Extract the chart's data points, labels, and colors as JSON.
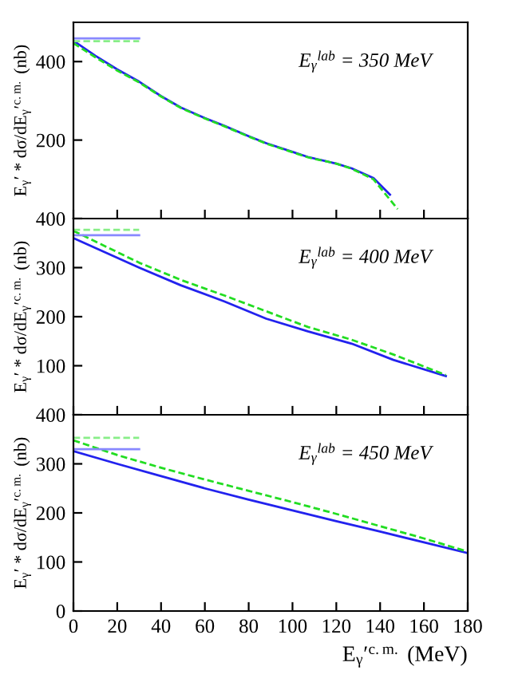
{
  "chart_data": [
    {
      "type": "line",
      "ylabel": "E$_{γ}$′ * dσ/dE$_{γ}$′$^{c.m.}$ (nb)",
      "annotations": [
        "E$_{γ}$$^{lab}$ = 350 MeV"
      ],
      "xlim": [
        0,
        180
      ],
      "xticks": [
        0,
        20,
        40,
        60,
        80,
        100,
        120,
        140,
        160,
        180
      ],
      "ylim": [
        0,
        500
      ],
      "yticks": [
        {
          "value": 0,
          "label": null
        },
        200,
        400
      ],
      "tick_labels": "y",
      "series": [
        {
          "color": "#2222ee",
          "line_style": "solid",
          "x": [
            0,
            10,
            20,
            30,
            40,
            49,
            60,
            69,
            80,
            88,
            100,
            107,
            120,
            127,
            137,
            144.5
          ],
          "values": [
            453,
            415,
            380,
            349,
            312,
            283,
            256,
            236,
            210,
            192,
            170,
            157,
            140,
            128,
            103,
            61
          ]
        },
        {
          "color": "#22dd22",
          "line_style": "dashed",
          "x": [
            0,
            10,
            20,
            30,
            40,
            49,
            60,
            69,
            80,
            88,
            100,
            107,
            120,
            127,
            137,
            148
          ],
          "values": [
            447,
            411,
            377,
            347,
            311,
            282,
            255,
            235,
            209,
            191,
            169,
            156,
            140,
            127,
            100,
            24
          ]
        },
        {
          "color": "#8888ff",
          "line_style": "solid",
          "x": [
            0,
            30
          ],
          "values": [
            459,
            459
          ]
        },
        {
          "color": "#88ee88",
          "line_style": "dashed",
          "x": [
            0,
            30
          ],
          "values": [
            452,
            452
          ]
        }
      ]
    },
    {
      "type": "line",
      "ylabel": "E$_{γ}$′ * dσ/dE$_{γ}$′$^{c.m.}$ (nb)",
      "annotations": [
        "E$_{γ}$$^{lab}$ = 400 MeV"
      ],
      "xlim": [
        0,
        180
      ],
      "xticks": [
        0,
        20,
        40,
        60,
        80,
        100,
        120,
        140,
        160,
        180
      ],
      "ylim": [
        0,
        400
      ],
      "yticks": [
        {
          "value": 0,
          "label": null
        },
        100,
        200,
        300,
        400
      ],
      "tick_labels": "y",
      "series": [
        {
          "color": "#2222ee",
          "line_style": "solid",
          "x": [
            0,
            30,
            49,
            69,
            88,
            107,
            127,
            146,
            170
          ],
          "values": [
            360,
            300,
            264,
            231,
            196,
            170,
            145,
            112,
            79
          ]
        },
        {
          "color": "#22dd22",
          "line_style": "dashed",
          "x": [
            0,
            30,
            49,
            69,
            88,
            107,
            127,
            146,
            170
          ],
          "values": [
            375,
            310,
            275,
            243,
            211,
            179,
            153,
            123,
            81
          ]
        },
        {
          "color": "#8888ff",
          "line_style": "solid",
          "x": [
            0,
            30
          ],
          "values": [
            366,
            366
          ]
        },
        {
          "color": "#88ee88",
          "line_style": "dashed",
          "x": [
            0,
            30
          ],
          "values": [
            377,
            377
          ]
        }
      ]
    },
    {
      "type": "line",
      "xlabel": "E$_{γ}$′$^{c.m.}$ (MeV)",
      "ylabel": "E$_{γ}$′ * dσ/dE$_{γ}$′$^{c.m.}$ (nb)",
      "annotations": [
        "E$_{γ}$$^{lab}$ = 450 MeV"
      ],
      "xlim": [
        0,
        180
      ],
      "xticks": [
        0,
        20,
        40,
        60,
        80,
        100,
        120,
        140,
        160,
        180
      ],
      "ylim": [
        0,
        400
      ],
      "yticks": [
        0,
        100,
        200,
        300,
        400
      ],
      "series": [
        {
          "color": "#2222ee",
          "line_style": "solid",
          "x": [
            0,
            20,
            40,
            60,
            80,
            100,
            120,
            140,
            160,
            180
          ],
          "values": [
            326,
            300,
            275,
            250,
            227,
            205,
            183,
            162,
            140,
            118
          ]
        },
        {
          "color": "#22dd22",
          "line_style": "dashed",
          "x": [
            0,
            20,
            40,
            60,
            80,
            100,
            120,
            140,
            160,
            180
          ],
          "values": [
            348,
            318,
            292,
            268,
            245,
            222,
            198,
            173,
            148,
            121
          ]
        },
        {
          "color": "#8888ff",
          "line_style": "solid",
          "x": [
            0,
            30
          ],
          "values": [
            330,
            330
          ]
        },
        {
          "color": "#88ee88",
          "line_style": "dashed",
          "x": [
            0,
            30
          ],
          "values": [
            353,
            353
          ]
        }
      ]
    }
  ]
}
